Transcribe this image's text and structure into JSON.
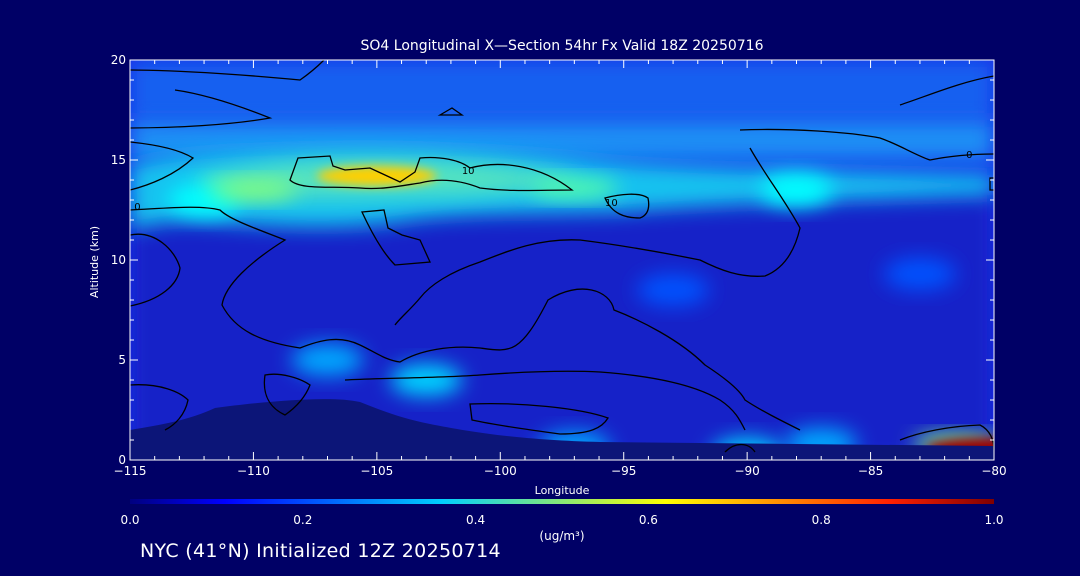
{
  "chart_data": {
    "type": "heatmap",
    "title": "SO4 Longitudinal X—Section 54hr  Fx Valid 18Z 20250716",
    "xlabel": "Longitude",
    "ylabel": "Altitude (km)",
    "xlim": [
      -115,
      -80
    ],
    "ylim": [
      0,
      20
    ],
    "x_ticks": [
      -115,
      -110,
      -105,
      -100,
      -95,
      -90,
      -85,
      -80
    ],
    "x_tick_labels": [
      "−115",
      "−110",
      "−105",
      "−100",
      "−95",
      "−90",
      "−85",
      "−80"
    ],
    "y_ticks": [
      0,
      5,
      10,
      15,
      20
    ],
    "y_tick_labels": [
      "0",
      "5",
      "10",
      "15",
      "20"
    ],
    "colorbar": {
      "min": 0.0,
      "max": 1.0,
      "ticks": [
        0.0,
        0.2,
        0.4,
        0.6,
        0.8,
        1.0
      ],
      "tick_labels": [
        "0.0",
        "0.2",
        "0.4",
        "0.6",
        "0.8",
        "1.0"
      ],
      "unit_label": "(ug/m³)",
      "colormap": "jet"
    },
    "features": [
      {
        "lon": -105,
        "alt": 14.2,
        "value": 0.65
      },
      {
        "lon": -110,
        "alt": 13.5,
        "value": 0.45
      },
      {
        "lon": -97,
        "alt": 13.6,
        "value": 0.4
      },
      {
        "lon": -88,
        "alt": 13.5,
        "value": 0.3
      },
      {
        "lon": -112,
        "alt": 13.0,
        "value": 0.3
      },
      {
        "lon": -103,
        "alt": 4.0,
        "value": 0.25
      },
      {
        "lon": -107,
        "alt": 5.0,
        "value": 0.2
      },
      {
        "lon": -80.3,
        "alt": 0.6,
        "value": 1.0
      },
      {
        "lon": -81.5,
        "alt": 0.8,
        "value": 0.45
      },
      {
        "lon": -90,
        "alt": 0.3,
        "value": 0.25
      },
      {
        "lon": -87,
        "alt": 0.8,
        "value": 0.2
      },
      {
        "lon": -97,
        "alt": 0.6,
        "value": 0.2
      },
      {
        "lon": -93,
        "alt": 8.5,
        "value": 0.1
      },
      {
        "lon": -83,
        "alt": 9.3,
        "value": 0.1
      }
    ],
    "contour_labels": [
      {
        "text": "0",
        "lon": -114.7,
        "alt": 12.5
      },
      {
        "text": "10",
        "lon": -101.3,
        "alt": 14.3
      },
      {
        "text": "10",
        "lon": -95.5,
        "alt": 12.7
      },
      {
        "text": "0",
        "lon": -81,
        "alt": 15.1
      }
    ]
  },
  "footer": {
    "text": "NYC (41°N) Initialized 12Z 20250714"
  },
  "colors": {
    "background": "#000066",
    "text": "#ffffff",
    "contour": "#000000"
  }
}
